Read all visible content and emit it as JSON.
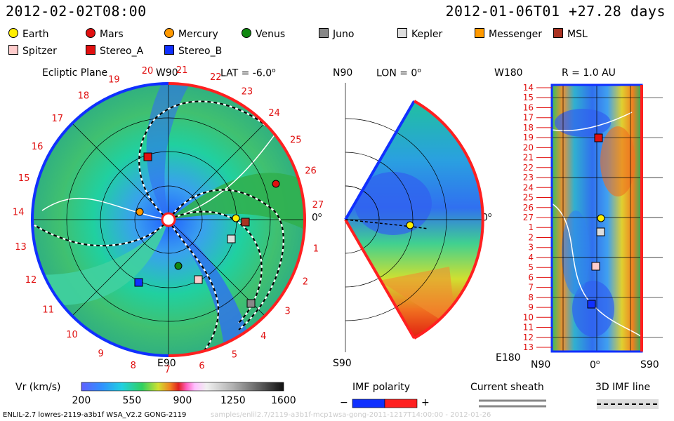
{
  "header": {
    "timestamp": "2012-02-02T08:00",
    "run_info": "2012-01-06T01 +27.28 days"
  },
  "legend": [
    {
      "label": "Earth",
      "shape": "circle",
      "color": "#ffee00"
    },
    {
      "label": "Mars",
      "shape": "circle",
      "color": "#e01010"
    },
    {
      "label": "Mercury",
      "shape": "circle",
      "color": "#ff9900"
    },
    {
      "label": "Venus",
      "shape": "circle",
      "color": "#118811"
    },
    {
      "label": "Juno",
      "shape": "square",
      "color": "#888888"
    },
    {
      "label": "Kepler",
      "shape": "square",
      "color": "#dddddd"
    },
    {
      "label": "Messenger",
      "shape": "square",
      "color": "#ff9900"
    },
    {
      "label": "MSL",
      "shape": "square",
      "color": "#aa3322"
    },
    {
      "label": "Spitzer",
      "shape": "square",
      "color": "#ffcccc"
    },
    {
      "label": "Stereo_A",
      "shape": "square",
      "color": "#e01010"
    },
    {
      "label": "Stereo_B",
      "shape": "square",
      "color": "#1030ff"
    }
  ],
  "ecliptic_panel": {
    "title": "Ecliptic Plane",
    "top_label": "W90",
    "lat_label": "LAT = -6.0",
    "lat_deg_mark": "o",
    "bottom_label": "E90",
    "right_label": "0",
    "right_deg_mark": "o",
    "day_ticks": [
      "1",
      "2",
      "3",
      "4",
      "5",
      "6",
      "7",
      "8",
      "9",
      "10",
      "11",
      "12",
      "13",
      "14",
      "15",
      "16",
      "17",
      "18",
      "19",
      "20",
      "21",
      "22",
      "23",
      "24",
      "25",
      "26",
      "27"
    ]
  },
  "meridional_panel": {
    "top_left_label": "N90",
    "lon_label": "LON = 0",
    "lon_deg_mark": "o",
    "right_label": "0",
    "right_deg_mark": "o",
    "bottom_label": "S90"
  },
  "synoptic_panel": {
    "title": "R = 1.0 AU",
    "top_left_label": "W180",
    "bottom_left_label": "E180",
    "bottom_axis": [
      "N90",
      "0",
      "S90"
    ],
    "bottom_zero_mark": "o",
    "rows": [
      "14",
      "15",
      "16",
      "17",
      "18",
      "19",
      "20",
      "21",
      "22",
      "23",
      "24",
      "25",
      "26",
      "27",
      "1",
      "2",
      "3",
      "4",
      "5",
      "6",
      "7",
      "8",
      "9",
      "10",
      "11",
      "12",
      "13"
    ]
  },
  "colorbar": {
    "label": "Vr (km/s)",
    "ticks": [
      "200",
      "550",
      "900",
      "1250",
      "1600"
    ]
  },
  "imf": {
    "title": "IMF polarity",
    "minus": "−",
    "plus": "+"
  },
  "current_sheath": {
    "title": "Current sheath"
  },
  "imf_line": {
    "title": "3D IMF line"
  },
  "footer": {
    "model_info": "ENLIL-2.7 lowres-2119-a3b1f WSA_V2.2 GONG-2119",
    "faded_path": "samples/enlil2.7/2119-a3b1f-mcp1wsa-gong-2011-1217T14:00:00 - 2012-01-26"
  }
}
